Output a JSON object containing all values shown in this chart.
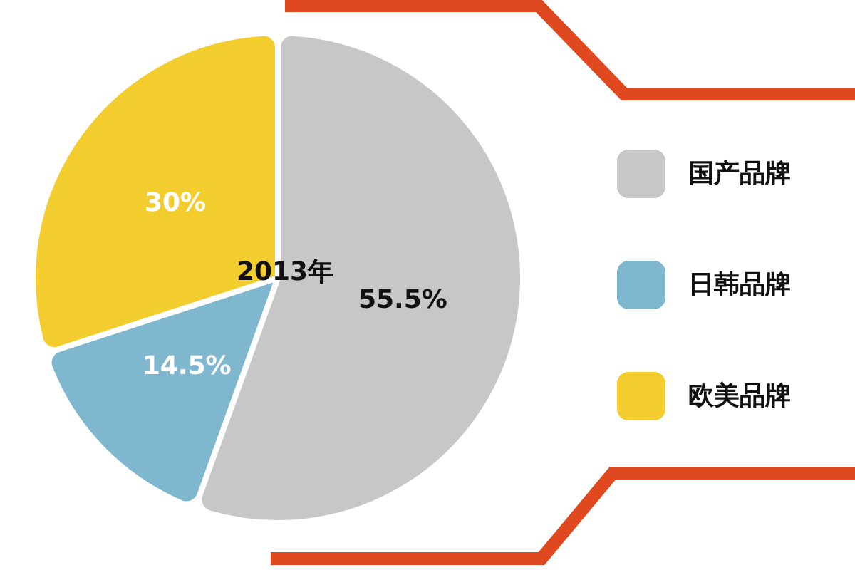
{
  "chart_data": {
    "type": "pie",
    "title": "2013年",
    "categories": [
      "国产品牌",
      "日韩品牌",
      "欧美品牌"
    ],
    "values": [
      55.5,
      14.5,
      30
    ],
    "value_labels": [
      "55.5%",
      "14.5%",
      "30%"
    ],
    "colors": [
      "#c8c7c8",
      "#7fb7cf",
      "#f2cd2d"
    ],
    "legend": "right"
  }
}
